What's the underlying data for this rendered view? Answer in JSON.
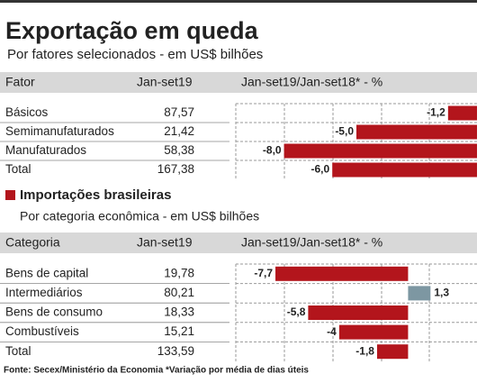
{
  "chart_data": [
    {
      "type": "bar",
      "title": "Exportação em queda",
      "subtitle": "Por fatores selecionados - em US$ bilhões",
      "columns": [
        "Fator",
        "Jan-set19",
        "Jan-set19/Jan-set18*  - %"
      ],
      "categories": [
        "Básicos",
        "Semimanufaturados",
        "Manufaturados",
        "Total"
      ],
      "amounts": [
        "87,57",
        "21,42",
        "58,38",
        "167,38"
      ],
      "values": [
        -1.2,
        -5.0,
        -8.0,
        -6.0
      ],
      "value_labels": [
        "-1,2",
        "-5,0",
        "-8,0",
        "-6,0"
      ],
      "colors": [
        "#b3151c",
        "#b3151c",
        "#b3151c",
        "#b3151c"
      ],
      "xlim": [
        -10,
        0
      ]
    },
    {
      "type": "bar",
      "title": "Importações brasileiras",
      "subtitle": "Por categoria econômica - em US$ bilhões",
      "columns": [
        "Categoria",
        "Jan-set19",
        "Jan-set19/Jan-set18*  - %"
      ],
      "categories": [
        "Bens de capital",
        "Intermediários",
        "Bens de consumo",
        "Combustíveis",
        "Total"
      ],
      "amounts": [
        "19,78",
        "80,21",
        "18,33",
        "15,21",
        "133,59"
      ],
      "values": [
        -7.7,
        1.3,
        -5.8,
        -4,
        -1.8
      ],
      "value_labels": [
        "-7,7",
        "1,3",
        "-5,8",
        "-4",
        "-1,8"
      ],
      "colors": [
        "#b3151c",
        "#7d97a2",
        "#b3151c",
        "#b3151c",
        "#b3151c"
      ],
      "xlim": [
        -10,
        4
      ]
    }
  ],
  "footnote": "Fonte: Secex/Ministério da Economia *Variação por média de dias úteis"
}
